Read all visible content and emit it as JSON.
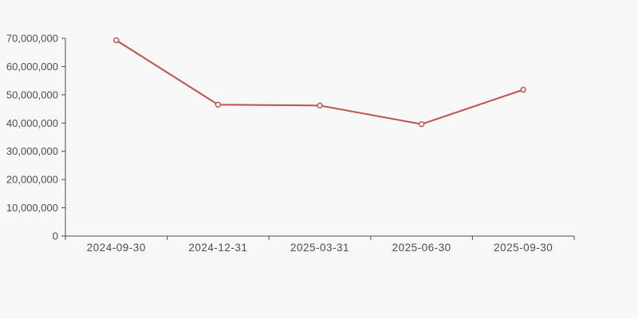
{
  "chart_data": {
    "type": "line",
    "categories": [
      "2024-09-30",
      "2024-12-31",
      "2025-03-31",
      "2025-06-30",
      "2025-09-30"
    ],
    "values": [
      69300000,
      46500000,
      46200000,
      39600000,
      51800000
    ],
    "series_name": "",
    "y_tick_labels": [
      "0",
      "10,000,000",
      "20,000,000",
      "30,000,000",
      "40,000,000",
      "50,000,000",
      "60,000,000",
      "70,000,000"
    ],
    "y_tick_step": 10000000,
    "ylim": [
      0,
      70000000
    ],
    "grid": false,
    "legend": false,
    "marker_style": "hollow-circle",
    "line_color": "#bc524e",
    "axis_color": "#4d4d4d",
    "label_color": "#4d4d4d",
    "background_color": "#f8f8f8"
  }
}
